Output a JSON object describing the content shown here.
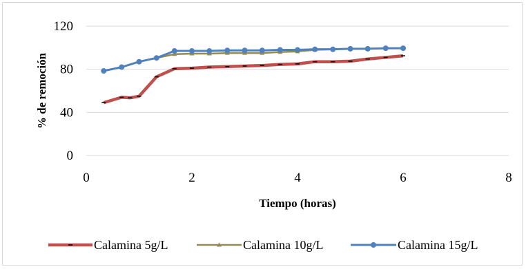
{
  "chart_data": {
    "type": "line",
    "title": "",
    "xlabel": "Tiempo (horas)",
    "ylabel": "% de remoción",
    "xlim": [
      0,
      8
    ],
    "ylim": [
      0,
      120
    ],
    "x_ticks": [
      "0",
      "2",
      "4",
      "6",
      "8"
    ],
    "y_ticks": [
      "0",
      "40",
      "80",
      "120"
    ],
    "grid": "horizontal",
    "legend": "bottom",
    "series": [
      {
        "name": "Calamina 5g/L",
        "color": "#c0504d",
        "marker": "dash",
        "x": [
          0.33,
          0.67,
          0.83,
          1.0,
          1.33,
          1.67,
          2.0,
          2.33,
          2.67,
          3.0,
          3.33,
          3.67,
          4.0,
          4.33,
          4.67,
          5.0,
          5.33,
          5.67,
          6.0
        ],
        "y": [
          49,
          54,
          53.5,
          55,
          73,
          80.5,
          81,
          82,
          82.5,
          83,
          83.5,
          84.5,
          85,
          87,
          87,
          87.5,
          89.5,
          91,
          92.5
        ]
      },
      {
        "name": "Calamina 10g/L",
        "color": "#948a54",
        "marker": "triangle",
        "x": [
          0.33,
          0.67,
          1.0,
          1.33,
          1.67,
          2.0,
          2.33,
          2.67,
          3.0,
          3.33,
          3.67,
          4.0,
          4.33,
          4.67,
          5.0,
          5.33,
          5.67,
          6.0
        ],
        "y": [
          78.5,
          82,
          87,
          90.5,
          94,
          94.5,
          94.5,
          95,
          95,
          95,
          96,
          96.5,
          98,
          98.5,
          99,
          99,
          99.5,
          99.5
        ]
      },
      {
        "name": "Calamina 15g/L",
        "color": "#4f81bd",
        "marker": "circle",
        "x": [
          0.33,
          0.67,
          1.0,
          1.33,
          1.67,
          2.0,
          2.33,
          2.67,
          3.0,
          3.33,
          3.67,
          4.0,
          4.33,
          4.67,
          5.0,
          5.33,
          5.67,
          6.0
        ],
        "y": [
          78.5,
          82,
          87,
          90.5,
          97,
          97,
          97,
          97.5,
          97.5,
          97.5,
          98,
          98,
          98.5,
          98.5,
          99,
          99,
          99.5,
          99.5
        ]
      }
    ]
  }
}
